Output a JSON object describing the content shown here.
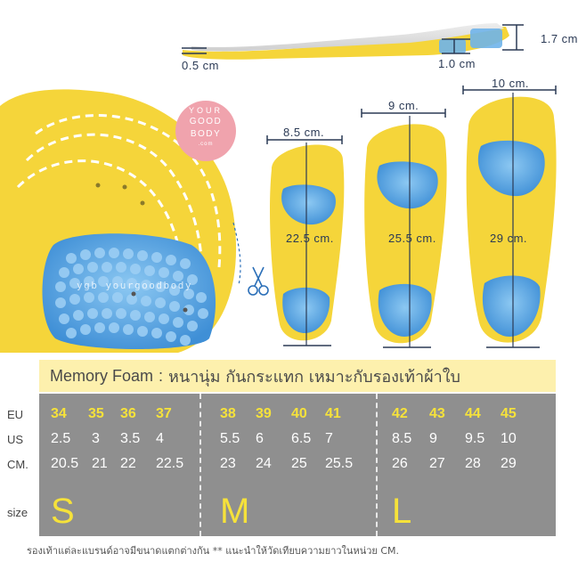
{
  "side_view": {
    "height_heel": "1.7 cm",
    "height_toe": "0.5 cm",
    "height_arch": "1.0 cm"
  },
  "logo": {
    "line1": "YOUR",
    "line2": "GOOD",
    "line3": "BODY",
    "sub": ".com"
  },
  "watermark": "ygb yourgoodbody",
  "insoles": [
    {
      "width": "8.5 cm.",
      "length": "22.5 cm."
    },
    {
      "width": "9 cm.",
      "length": "25.5 cm."
    },
    {
      "width": "10 cm.",
      "length": "29 cm."
    }
  ],
  "headline": {
    "label": "Memory Foam",
    "sep": ":",
    "desc": "หนานุ่ม กันกระแทก เหมาะกับรองเท้าผ้าใบ"
  },
  "size_table": {
    "row_labels": {
      "eu": "EU",
      "us": "US",
      "cm": "CM.",
      "size": "size"
    },
    "groups": [
      {
        "size": "S",
        "eu": [
          "34",
          "35",
          "36",
          "37"
        ],
        "us": [
          "2.5",
          "3",
          "3.5",
          "4"
        ],
        "cm": [
          "20.5",
          "21",
          "22",
          "22.5"
        ]
      },
      {
        "size": "M",
        "eu": [
          "38",
          "39",
          "40",
          "41"
        ],
        "us": [
          "5.5",
          "6",
          "6.5",
          "7"
        ],
        "cm": [
          "23",
          "24",
          "25",
          "25.5"
        ]
      },
      {
        "size": "L",
        "eu": [
          "42",
          "43",
          "44",
          "45"
        ],
        "us": [
          "8.5",
          "9",
          "9.5",
          "10"
        ],
        "cm": [
          "26",
          "27",
          "28",
          "29"
        ]
      }
    ]
  },
  "footnote": "รองเท้าแต่ละแบรนด์อาจมีขนาดแตกต่างกัน ** แนะนำให้วัดเทียบความยาวในหน่วย CM.",
  "colors": {
    "insole_yellow": "#f5d53a",
    "gel_blue": "#5aa9e6",
    "table_bg": "#8f8f8f",
    "headline_bg": "#fdf0ad",
    "eu_text": "#f6e23a",
    "logo_pink": "#f0a3ad",
    "measure_line": "#2b3a55"
  }
}
